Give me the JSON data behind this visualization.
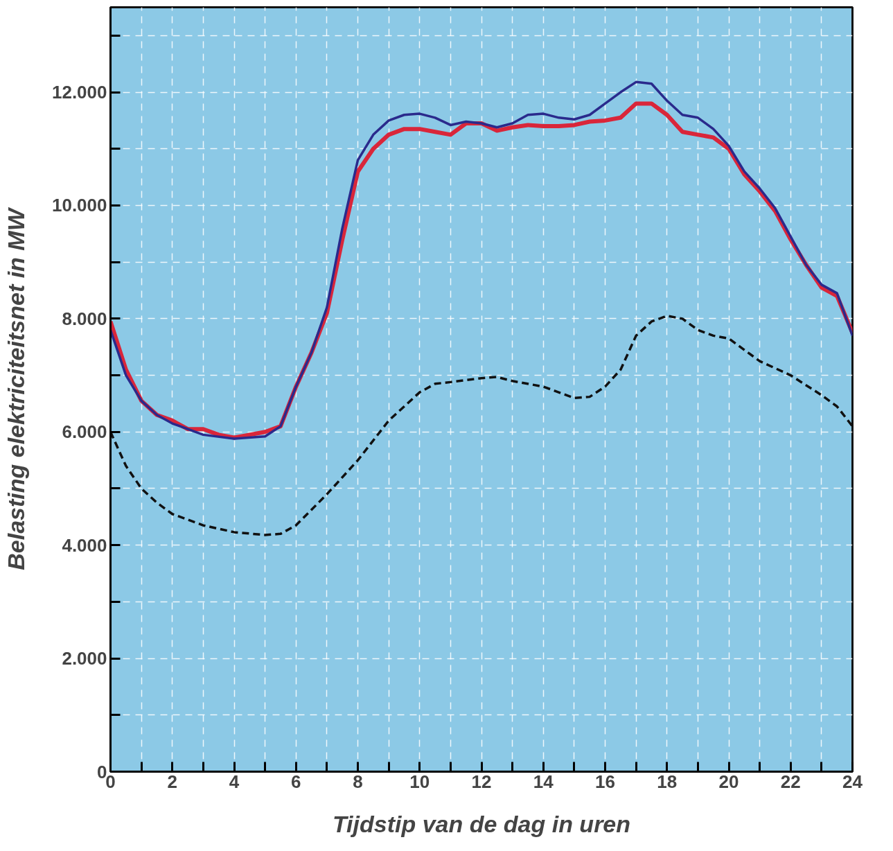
{
  "chart_data": {
    "type": "line",
    "xlabel": "Tijdstip van de dag in uren",
    "ylabel": "Belasting elektriciteitsnet in MW",
    "xlim": [
      0,
      24
    ],
    "ylim": [
      0,
      13500
    ],
    "xticks": [
      0,
      {
        "value": 1,
        "label": null
      },
      2,
      {
        "value": 3,
        "label": null
      },
      4,
      {
        "value": 5,
        "label": null
      },
      6,
      {
        "value": 7,
        "label": null
      },
      8,
      {
        "value": 9,
        "label": null
      },
      10,
      {
        "value": 11,
        "label": null
      },
      12,
      {
        "value": 13,
        "label": null
      },
      14,
      {
        "value": 15,
        "label": null
      },
      16,
      {
        "value": 17,
        "label": null
      },
      18,
      {
        "value": 19,
        "label": null
      },
      20,
      {
        "value": 21,
        "label": null
      },
      22,
      {
        "value": 23,
        "label": null
      },
      24
    ],
    "yticks": [
      0,
      {
        "value": 1000,
        "label": null
      },
      {
        "value": 2000,
        "label": "2.000"
      },
      {
        "value": 3000,
        "label": null
      },
      {
        "value": 4000,
        "label": "4.000"
      },
      {
        "value": 5000,
        "label": null
      },
      {
        "value": 6000,
        "label": "6.000"
      },
      {
        "value": 7000,
        "label": null
      },
      {
        "value": 8000,
        "label": "8.000"
      },
      {
        "value": 9000,
        "label": null
      },
      {
        "value": 10000,
        "label": "10.000"
      },
      {
        "value": 11000,
        "label": null
      },
      {
        "value": 12000,
        "label": "12.000"
      },
      {
        "value": 13000,
        "label": null
      }
    ],
    "grid": true,
    "series": [
      {
        "color": "#d9263a",
        "line_style": "solid",
        "x": [
          0,
          0.5,
          1,
          1.5,
          2,
          2.5,
          3,
          3.5,
          4,
          4.5,
          5,
          5.5,
          6,
          6.5,
          7,
          7.5,
          8,
          8.5,
          9,
          9.5,
          10,
          10.5,
          11,
          11.5,
          12,
          12.5,
          13,
          13.5,
          14,
          14.5,
          15,
          15.5,
          16,
          16.5,
          17,
          17.5,
          18,
          18.5,
          19,
          19.5,
          20,
          20.5,
          21,
          21.5,
          22,
          22.5,
          23,
          23.5,
          24
        ],
        "values": [
          7950,
          7100,
          6550,
          6300,
          6200,
          6050,
          6050,
          5950,
          5900,
          5950,
          6000,
          6100,
          6800,
          7400,
          8100,
          9400,
          10600,
          11000,
          11250,
          11350,
          11350,
          11300,
          11250,
          11450,
          11450,
          11320,
          11380,
          11420,
          11400,
          11400,
          11420,
          11480,
          11500,
          11550,
          11800,
          11800,
          11600,
          11300,
          11250,
          11200,
          11000,
          10550,
          10250,
          9900,
          9400,
          8950,
          8550,
          8400,
          7750
        ]
      },
      {
        "color": "#2a2a8c",
        "line_style": "solid",
        "x": [
          0,
          0.5,
          1,
          1.5,
          2,
          2.5,
          3,
          4,
          5,
          5.5,
          6,
          6.5,
          7,
          7.5,
          8,
          8.5,
          9,
          9.5,
          10,
          10.5,
          11,
          11.5,
          12,
          12.5,
          13,
          13.5,
          14,
          14.5,
          15,
          15.5,
          16,
          16.5,
          17,
          17.5,
          18,
          18.5,
          19,
          19.5,
          20,
          20.5,
          21,
          21.5,
          22,
          22.5,
          23,
          23.5,
          24
        ],
        "values": [
          7800,
          7000,
          6550,
          6300,
          6150,
          6050,
          5950,
          5880,
          5920,
          6100,
          6800,
          7400,
          8200,
          9600,
          10800,
          11250,
          11500,
          11600,
          11620,
          11550,
          11420,
          11480,
          11450,
          11380,
          11450,
          11600,
          11620,
          11550,
          11520,
          11600,
          11800,
          12000,
          12180,
          12150,
          11850,
          11600,
          11550,
          11350,
          11050,
          10600,
          10300,
          9950,
          9450,
          8950,
          8600,
          8450,
          7700
        ]
      },
      {
        "color": "#111111",
        "line_style": "dashed",
        "x": [
          0,
          0.5,
          1,
          1.5,
          2,
          3,
          4,
          5,
          5.5,
          6,
          7,
          8,
          9,
          10,
          10.5,
          11,
          12,
          12.5,
          13,
          14,
          15,
          15.5,
          16,
          16.5,
          17,
          17.5,
          18,
          18.5,
          19,
          19.5,
          20,
          21,
          22,
          23,
          23.5,
          24
        ],
        "values": [
          6000,
          5400,
          5000,
          4750,
          4550,
          4350,
          4230,
          4180,
          4200,
          4350,
          4900,
          5500,
          6200,
          6700,
          6850,
          6880,
          6950,
          6970,
          6900,
          6800,
          6600,
          6620,
          6800,
          7100,
          7700,
          7950,
          8050,
          8000,
          7800,
          7700,
          7650,
          7250,
          7000,
          6650,
          6450,
          6100
        ]
      }
    ]
  }
}
